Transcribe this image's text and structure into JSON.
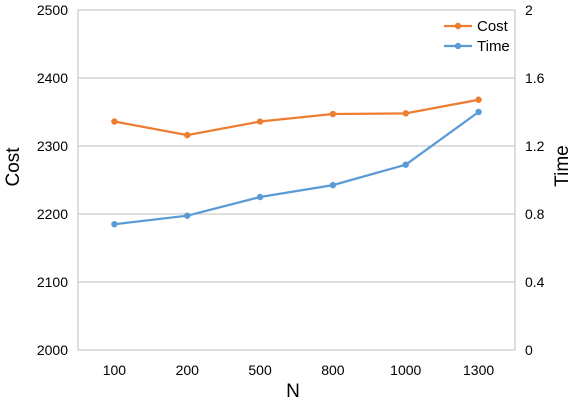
{
  "chart_data": {
    "type": "line",
    "categories": [
      "100",
      "200",
      "500",
      "800",
      "1000",
      "1300"
    ],
    "series": [
      {
        "name": "Cost",
        "axis": "left",
        "color": "#ED7D31",
        "values": [
          2336,
          2316,
          2336,
          2347,
          2348,
          2368
        ]
      },
      {
        "name": "Time",
        "axis": "right",
        "color": "#5B9BD5",
        "values": [
          0.74,
          0.79,
          0.9,
          0.97,
          1.09,
          1.4
        ]
      }
    ],
    "xlabel": "N",
    "ylabel": "Cost",
    "y2label": "Time",
    "ylim": [
      2000,
      2500
    ],
    "y2lim": [
      0,
      2
    ],
    "yticks": [
      "2000",
      "2100",
      "2200",
      "2300",
      "2400",
      "2500"
    ],
    "y2ticks": [
      "0",
      "0.4",
      "0.8",
      "1.2",
      "1.6",
      "2"
    ],
    "grid": true,
    "legend_position": "top-right"
  }
}
